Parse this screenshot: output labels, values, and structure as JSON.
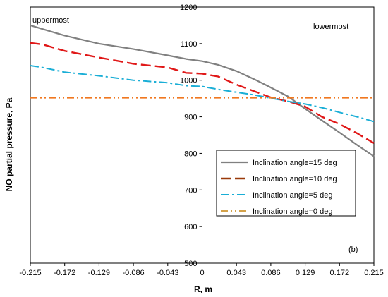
{
  "chart_data": {
    "type": "line",
    "title": "",
    "xlabel": "R, m",
    "ylabel": "NO partial pressure, Pa",
    "xlim": [
      -0.215,
      0.215
    ],
    "ylim": [
      500,
      1200
    ],
    "x_ticks": [
      "-0.215",
      "-0.172",
      "-0.129",
      "-0.086",
      "-0.043",
      "0",
      "0.043",
      "0.086",
      "0.129",
      "0.172",
      "0.215"
    ],
    "y_ticks": [
      "500",
      "600",
      "700",
      "800",
      "900",
      "1000",
      "1100",
      "1200"
    ],
    "annotations": {
      "left": "uppermost",
      "right": "lowermost",
      "panel": "(b)"
    },
    "legend_position": "center-right",
    "series": [
      {
        "name": "Inclination angle=15 deg",
        "color": "#808080",
        "dash": "solid",
        "x": [
          -0.215,
          -0.2,
          -0.172,
          -0.129,
          -0.086,
          -0.043,
          -0.02,
          0,
          0.02,
          0.043,
          0.065,
          0.086,
          0.108,
          0.129,
          0.15,
          0.172,
          0.194,
          0.215
        ],
        "y": [
          1150,
          1140,
          1122,
          1100,
          1085,
          1068,
          1058,
          1052,
          1042,
          1025,
          1003,
          980,
          955,
          922,
          890,
          857,
          823,
          792
        ]
      },
      {
        "name": "Inclination angle=10 deg",
        "color": "#e01818",
        "dash": "long-dash",
        "x": [
          -0.215,
          -0.2,
          -0.172,
          -0.129,
          -0.086,
          -0.043,
          -0.02,
          0,
          0.02,
          0.043,
          0.065,
          0.086,
          0.108,
          0.129,
          0.15,
          0.172,
          0.194,
          0.215
        ],
        "y": [
          1102,
          1098,
          1080,
          1062,
          1045,
          1035,
          1020,
          1018,
          1010,
          988,
          970,
          953,
          942,
          928,
          900,
          880,
          855,
          828
        ]
      },
      {
        "name": "Inclination angle=5 deg",
        "color": "#1aaed6",
        "dash": "dash-dot",
        "x": [
          -0.215,
          -0.2,
          -0.172,
          -0.129,
          -0.086,
          -0.043,
          -0.02,
          0,
          0.02,
          0.043,
          0.065,
          0.086,
          0.108,
          0.129,
          0.15,
          0.172,
          0.194,
          0.215
        ],
        "y": [
          1040,
          1035,
          1022,
          1012,
          1000,
          993,
          985,
          983,
          975,
          967,
          960,
          951,
          942,
          935,
          925,
          912,
          900,
          887
        ]
      },
      {
        "name": "Inclination angle=0 deg",
        "color": "#f07820",
        "dash": "dash-dot-dot",
        "x": [
          -0.215,
          0.215
        ],
        "y": [
          952,
          952
        ]
      }
    ],
    "legend_swatch_colors": [
      "#808080",
      "#9a3a0a",
      "#1aaed6",
      "#d4a24a"
    ]
  }
}
